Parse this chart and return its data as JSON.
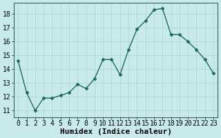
{
  "x": [
    0,
    1,
    2,
    3,
    4,
    5,
    6,
    7,
    8,
    9,
    10,
    11,
    12,
    13,
    14,
    15,
    16,
    17,
    18,
    19,
    20,
    21,
    22,
    23
  ],
  "y": [
    14.6,
    12.3,
    11.0,
    11.9,
    11.9,
    12.1,
    12.3,
    12.9,
    12.6,
    13.3,
    14.7,
    14.7,
    13.6,
    15.4,
    16.9,
    17.5,
    18.3,
    18.4,
    16.5,
    16.5,
    16.0,
    15.4,
    14.7,
    13.7
  ],
  "line_color": "#1a6b5a",
  "marker": "D",
  "marker_size": 2.5,
  "bg_color": "#c8eae8",
  "grid_color": "#b0d8d5",
  "xlabel": "Humidex (Indice chaleur)",
  "ylabel_ticks": [
    11,
    12,
    13,
    14,
    15,
    16,
    17,
    18
  ],
  "xlim": [
    -0.5,
    23.5
  ],
  "ylim": [
    10.5,
    18.8
  ],
  "xlabel_fontsize": 8,
  "tick_fontsize": 7
}
